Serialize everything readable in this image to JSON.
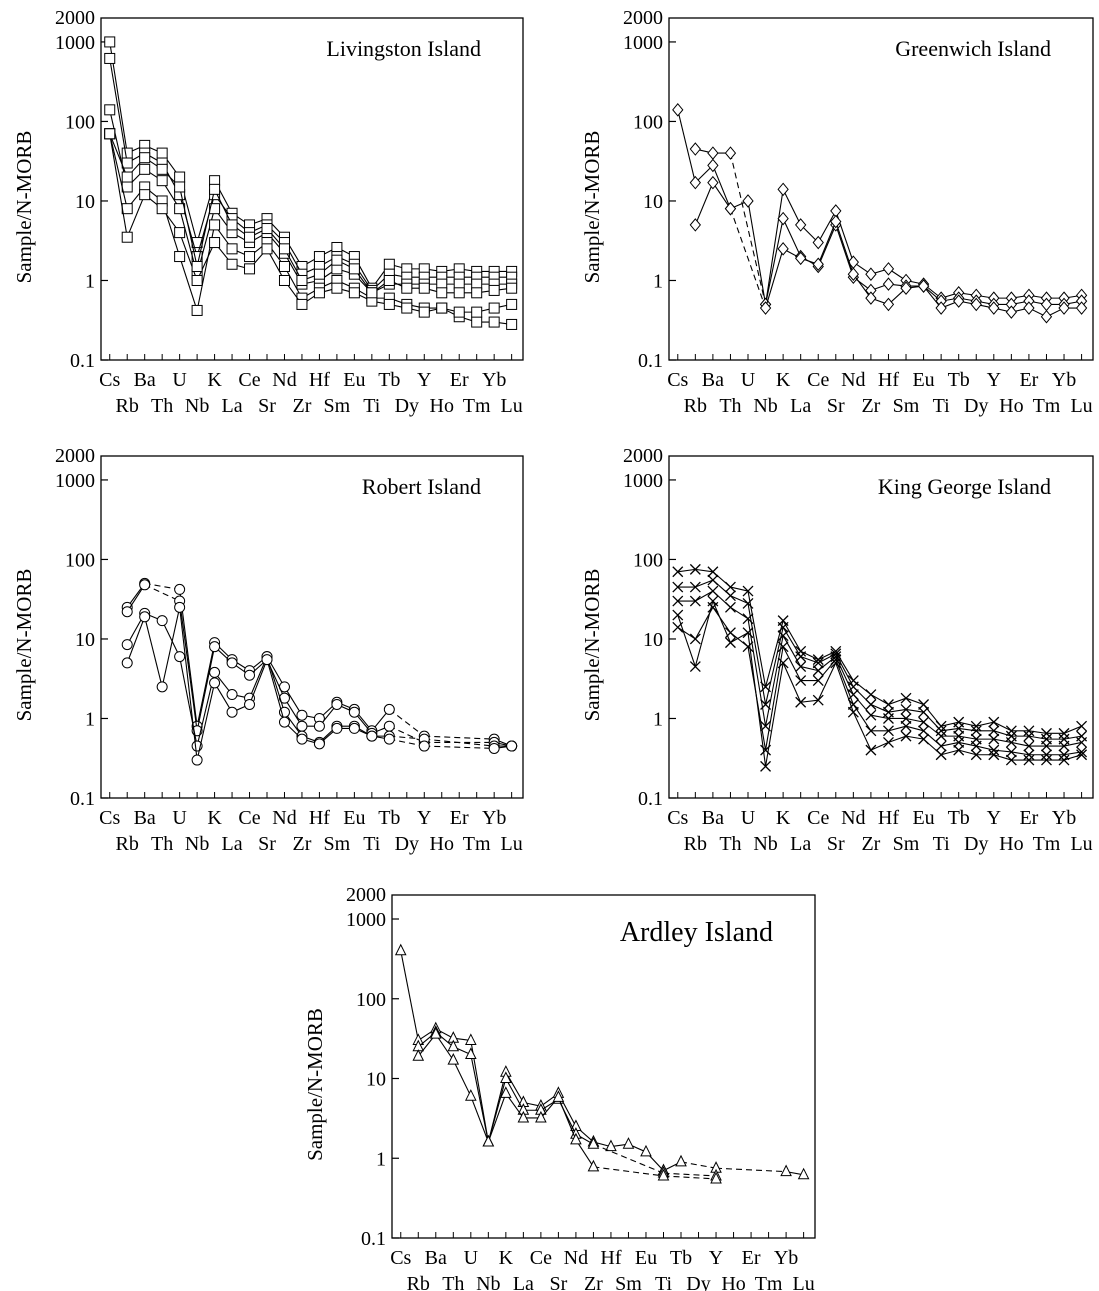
{
  "panel_elements": [
    "Cs",
    "Rb",
    "Ba",
    "Th",
    "U",
    "Nb",
    "K",
    "La",
    "Ce",
    "Sr",
    "Nd",
    "Zr",
    "Hf",
    "Sm",
    "Eu",
    "Ti",
    "Tb",
    "Dy",
    "Y",
    "Ho",
    "Er",
    "Tm",
    "Yb",
    "Lu"
  ],
  "y_axis_label": "Sample/N-MORB",
  "y_ticks": [
    2000,
    1000,
    100,
    10,
    1,
    0.1
  ],
  "chart_data": [
    {
      "type": "line",
      "title": "Livingston Island",
      "ylabel": "Sample/N-MORB",
      "yscale": "log",
      "ylim": [
        0.1,
        2000
      ],
      "marker": "square",
      "series": [
        {
          "values": {
            "Cs": 1000,
            "Rb": 40,
            "Ba": 50,
            "Th": 40,
            "U": 20,
            "Nb": 3,
            "K": 18,
            "La": 7,
            "Ce": 5,
            "Sr": 6,
            "Nd": 3.5,
            "Zr": 1.5,
            "Hf": 2,
            "Sm": 2.6,
            "Eu": 2,
            "Ti": 0.8,
            "Tb": 1.6,
            "Dy": 1.4,
            "Y": 1.4,
            "Ho": 1.3,
            "Er": 1.4,
            "Tm": 1.3,
            "Yb": 1.3,
            "Lu": 1.3
          }
        },
        {
          "values": {
            "Cs": 620,
            "Rb": 30,
            "Ba": 40,
            "Th": 30,
            "U": 12,
            "Nb": 2,
            "K": 12,
            "La": 6,
            "Ce": 4,
            "Sr": 5,
            "Nd": 3,
            "Zr": 1.2,
            "Hf": 1.5,
            "Sm": 2,
            "Eu": 1.6,
            "Ti": 0.75,
            "Tb": 1.2,
            "Dy": 1.1,
            "Y": 1.1,
            "Ho": 1.1,
            "Er": 1.1,
            "Tm": 1.1,
            "Yb": 1.1,
            "Lu": 1.1
          }
        },
        {
          "values": {
            "Cs": 140,
            "Rb": 15,
            "Ba": 25,
            "Th": 18,
            "U": 8,
            "Nb": 1.2,
            "K": 8,
            "La": 4,
            "Ce": 3,
            "Sr": 4,
            "Nd": 2.2,
            "Zr": 0.9,
            "Hf": 1,
            "Sm": 1.4,
            "Eu": 1.2,
            "Ti": 0.7,
            "Tb": 0.9,
            "Dy": 0.9,
            "Y": 0.9,
            "Ho": 0.9,
            "Er": 0.9,
            "Tm": 0.9,
            "Yb": 0.9,
            "Lu": 0.9
          }
        },
        {
          "values": {
            "Cs": 70,
            "Rb": 8,
            "Ba": 15,
            "Th": 10,
            "U": 2,
            "Nb": 0.42,
            "K": 5,
            "La": 2.5,
            "Ce": 2,
            "Sr": 3,
            "Nd": 1.5,
            "Zr": 0.6,
            "Hf": 0.8,
            "Sm": 1,
            "Eu": 0.8,
            "Ti": 0.6,
            "Tb": 0.6,
            "Dy": 0.5,
            "Y": 0.45,
            "Ho": 0.45,
            "Er": 0.35,
            "Tm": 0.3,
            "Yb": 0.3,
            "Lu": 0.28
          }
        },
        {
          "values": {
            "Cs": 70,
            "Rb": 3.5,
            "Ba": 12,
            "Th": 8,
            "U": 4,
            "Nb": 1,
            "K": 3,
            "La": 1.6,
            "Ce": 1.4,
            "Sr": 2.5,
            "Nd": 1,
            "Zr": 0.5,
            "Hf": 0.7,
            "Sm": 0.8,
            "Eu": 0.7,
            "Ti": 0.55,
            "Tb": 0.5,
            "Dy": 0.45,
            "Y": 0.4,
            "Ho": 0.45,
            "Er": 0.4,
            "Tm": 0.4,
            "Yb": 0.45,
            "Lu": 0.5
          }
        },
        {
          "values": {
            "Cs": 70,
            "Rb": 20,
            "Ba": 35,
            "Th": 25,
            "U": 15,
            "Nb": 1.5,
            "K": 14,
            "La": 5,
            "Ce": 3.5,
            "Sr": 4.5,
            "Nd": 2.5,
            "Zr": 1,
            "Hf": 1.2,
            "Sm": 1.8,
            "Eu": 1.4,
            "Ti": 0.7,
            "Tb": 1,
            "Dy": 0.8,
            "Y": 0.8,
            "Ho": 0.7,
            "Er": 0.7,
            "Tm": 0.7,
            "Yb": 0.75,
            "Lu": 0.8
          }
        }
      ]
    },
    {
      "type": "line",
      "title": "Greenwich Island",
      "ylabel": "Sample/N-MORB",
      "yscale": "log",
      "ylim": [
        0.1,
        2000
      ],
      "marker": "diamond",
      "series": [
        {
          "values": {
            "Cs": 140,
            "Rb": 17,
            "Ba": 28,
            "Th": 8,
            "U": 10,
            "Nb": 0.5,
            "K": 14,
            "La": 5,
            "Ce": 3,
            "Sr": 7.5,
            "Nd": 1.7,
            "Zr": 1.2,
            "Hf": 1.4,
            "Sm": 1,
            "Eu": 0.9,
            "Ti": 0.6,
            "Tb": 0.7,
            "Dy": 0.65,
            "Y": 0.6,
            "Ho": 0.6,
            "Er": 0.65,
            "Tm": 0.6,
            "Yb": 0.6,
            "Lu": 0.65
          }
        },
        {
          "values": {
            "Rb": 45,
            "Ba": 40,
            "Th": 40,
            "Nb": 0.5,
            "K": 6,
            "La": 2,
            "Ce": 1.5,
            "Sr": 5,
            "Nd": 1.1,
            "Zr": 0.75,
            "Hf": 0.9,
            "Sm": 0.85,
            "Eu": 0.85,
            "Ti": 0.55,
            "Tb": 0.6,
            "Dy": 0.55,
            "Y": 0.5,
            "Ho": 0.5,
            "Er": 0.55,
            "Tm": 0.5,
            "Yb": 0.5,
            "Lu": 0.55
          }
        },
        {
          "values": {
            "Rb": 5,
            "Ba": 17,
            "Th": 8,
            "Nb": 0.45,
            "K": 2.5,
            "La": 1.9,
            "Ce": 1.6,
            "Sr": 5.5,
            "Nd": 1.2,
            "Zr": 0.6,
            "Hf": 0.5,
            "Sm": 0.8,
            "Eu": 0.85,
            "Ti": 0.45,
            "Tb": 0.55,
            "Dy": 0.5,
            "Y": 0.45,
            "Ho": 0.4,
            "Er": 0.45,
            "Tm": 0.35,
            "Yb": 0.45,
            "Lu": 0.45
          }
        }
      ]
    },
    {
      "type": "line",
      "title": "Robert Island",
      "ylabel": "Sample/N-MORB",
      "yscale": "log",
      "ylim": [
        0.1,
        2000
      ],
      "marker": "circle",
      "series": [
        {
          "values": {
            "Rb": 25,
            "Ba": 50,
            "U": 42,
            "Nb": 0.8,
            "K": 9,
            "La": 5.5,
            "Ce": 4,
            "Sr": 6,
            "Nd": 2.5,
            "Zr": 1.1,
            "Hf": 1,
            "Sm": 1.6,
            "Eu": 1.3,
            "Ti": 0.7,
            "Tb": 1.3,
            "Y": 0.6,
            "Yb": 0.55,
            "Lu": 0.45
          }
        },
        {
          "values": {
            "Rb": 22,
            "Ba": 48,
            "U": 30,
            "Nb": 0.7,
            "K": 8,
            "La": 5,
            "Ce": 3.5,
            "Sr": 5.5,
            "Nd": 1.8,
            "Zr": 0.8,
            "Hf": 0.8,
            "Sm": 1.5,
            "Eu": 1.2,
            "Ti": 0.65,
            "Tb": 0.8,
            "Y": 0.5,
            "Yb": 0.5,
            "Lu": 0.45
          }
        },
        {
          "values": {
            "Rb": 8.5,
            "Ba": 21,
            "Th": 17,
            "U": 6,
            "Nb": 0.45,
            "K": 3.8,
            "La": 2,
            "Ce": 1.8,
            "Sr": 6,
            "Nd": 1.2,
            "Zr": 0.6,
            "Hf": 0.5,
            "Sm": 0.8,
            "Eu": 0.8,
            "Ti": 0.6,
            "Tb": 0.6,
            "Y": 0.55,
            "Yb": 0.45,
            "Lu": 0.45
          }
        },
        {
          "values": {
            "Rb": 5,
            "Ba": 19,
            "Th": 2.5,
            "U": 25,
            "Nb": 0.3,
            "K": 2.8,
            "La": 1.2,
            "Ce": 1.5,
            "Sr": 5.5,
            "Nd": 0.9,
            "Zr": 0.55,
            "Hf": 0.48,
            "Sm": 0.75,
            "Eu": 0.75,
            "Ti": 0.6,
            "Tb": 0.55,
            "Y": 0.45,
            "Yb": 0.42,
            "Lu": 0.45
          }
        }
      ]
    },
    {
      "type": "line",
      "title": "King George Island",
      "ylabel": "Sample/N-MORB",
      "yscale": "log",
      "ylim": [
        0.1,
        2000
      ],
      "marker": "cross",
      "series": [
        {
          "values": {
            "Cs": 70,
            "Rb": 75,
            "Ba": 70,
            "Th": 45,
            "U": 40,
            "Nb": 2.5,
            "K": 17,
            "La": 7,
            "Ce": 5.5,
            "Sr": 7,
            "Nd": 3,
            "Zr": 2,
            "Hf": 1.5,
            "Sm": 1.8,
            "Eu": 1.5,
            "Ti": 0.8,
            "Tb": 0.9,
            "Dy": 0.8,
            "Y": 0.9,
            "Ho": 0.7,
            "Er": 0.7,
            "Tm": 0.65,
            "Yb": 0.65,
            "Lu": 0.8
          }
        },
        {
          "values": {
            "Cs": 45,
            "Rb": 45,
            "Ba": 55,
            "Th": 35,
            "U": 28,
            "Nb": 1.5,
            "K": 14,
            "La": 6,
            "Ce": 5,
            "Sr": 6.5,
            "Nd": 2.5,
            "Zr": 1.5,
            "Hf": 1.2,
            "Sm": 1.3,
            "Eu": 1.2,
            "Ti": 0.7,
            "Tb": 0.75,
            "Dy": 0.7,
            "Y": 0.7,
            "Ho": 0.6,
            "Er": 0.6,
            "Tm": 0.55,
            "Yb": 0.55,
            "Lu": 0.6
          }
        },
        {
          "values": {
            "Cs": 30,
            "Rb": 30,
            "Ba": 40,
            "Th": 25,
            "U": 18,
            "Nb": 0.8,
            "K": 11,
            "La": 4.5,
            "Ce": 4,
            "Sr": 6,
            "Nd": 2,
            "Zr": 1.1,
            "Hf": 1,
            "Sm": 1,
            "Eu": 0.9,
            "Ti": 0.6,
            "Tb": 0.6,
            "Dy": 0.55,
            "Y": 0.55,
            "Ho": 0.5,
            "Er": 0.45,
            "Tm": 0.45,
            "Yb": 0.45,
            "Lu": 0.5
          }
        },
        {
          "values": {
            "Cs": 14,
            "Rb": 10,
            "Ba": 25,
            "Th": 12,
            "U": 8,
            "Nb": 0.4,
            "K": 8,
            "La": 3,
            "Ce": 3,
            "Sr": 5.5,
            "Nd": 1.5,
            "Zr": 0.7,
            "Hf": 0.7,
            "Sm": 0.8,
            "Eu": 0.7,
            "Ti": 0.45,
            "Tb": 0.5,
            "Dy": 0.45,
            "Y": 0.4,
            "Ho": 0.38,
            "Er": 0.35,
            "Tm": 0.35,
            "Yb": 0.35,
            "Lu": 0.38
          }
        },
        {
          "values": {
            "Cs": 20,
            "Rb": 4.5,
            "Ba": 30,
            "Th": 9,
            "U": 12,
            "Nb": 0.25,
            "K": 5,
            "La": 1.6,
            "Ce": 1.7,
            "Sr": 5,
            "Nd": 1.2,
            "Zr": 0.4,
            "Hf": 0.5,
            "Sm": 0.6,
            "Eu": 0.55,
            "Ti": 0.35,
            "Tb": 0.4,
            "Dy": 0.35,
            "Y": 0.35,
            "Ho": 0.3,
            "Er": 0.3,
            "Tm": 0.3,
            "Yb": 0.3,
            "Lu": 0.35
          }
        }
      ]
    },
    {
      "type": "line",
      "title": "Ardley Island",
      "ylabel": "Sample/N-MORB",
      "yscale": "log",
      "ylim": [
        0.1,
        2000
      ],
      "marker": "triangle",
      "series": [
        {
          "values": {
            "Cs": 400,
            "Rb": 30,
            "Ba": 42,
            "Th": 32,
            "U": 30,
            "Nb": 1.6,
            "K": 12,
            "La": 5,
            "Ce": 4.5,
            "Sr": 6.5,
            "Nd": 2.5,
            "Zr": 1.6,
            "Hf": 1.4,
            "Sm": 1.5,
            "Eu": 1.2,
            "Ti": 0.7,
            "Tb": 0.9,
            "Y": 0.75,
            "Yb": 0.68,
            "Lu": 0.62
          }
        },
        {
          "values": {
            "Rb": 25,
            "Ba": 38,
            "Th": 25,
            "U": 20,
            "Nb": 1.6,
            "K": 10,
            "La": 4,
            "Ce": 4,
            "Sr": 5.5,
            "Nd": 2,
            "Zr": 1.5,
            "Ti": 0.65,
            "Y": 0.6
          }
        },
        {
          "values": {
            "Rb": 19,
            "Ba": 36,
            "Th": 17,
            "U": 6,
            "Nb": 1.6,
            "K": 6.5,
            "La": 3.2,
            "Ce": 3.2,
            "Sr": 5.8,
            "Nd": 1.7,
            "Zr": 0.78,
            "Ti": 0.6,
            "Y": 0.55
          }
        }
      ]
    }
  ]
}
